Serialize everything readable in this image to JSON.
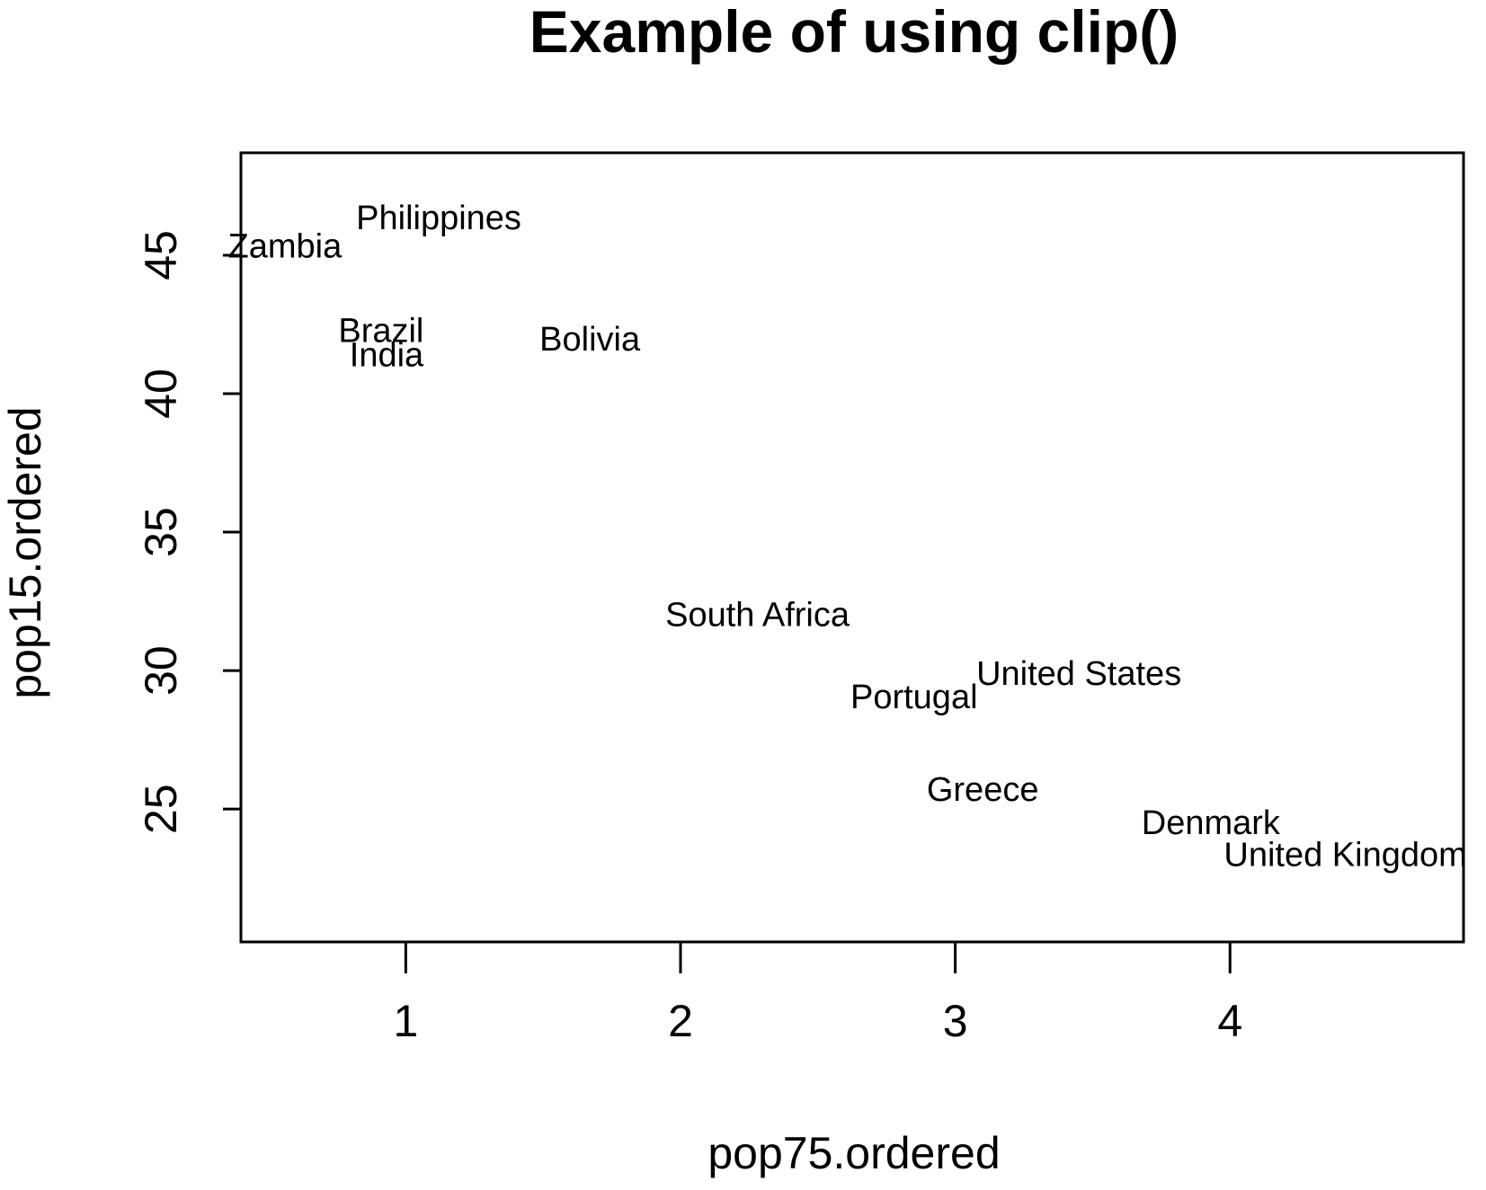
{
  "chart_data": {
    "type": "scatter",
    "title": "Example of using clip()",
    "xlabel": "pop75.ordered",
    "ylabel": "pop15.ordered",
    "xlim": [
      0.4,
      4.85
    ],
    "ylim": [
      20.2,
      48.7
    ],
    "xticks": [
      1,
      2,
      3,
      4
    ],
    "yticks": [
      25,
      30,
      35,
      40,
      45
    ],
    "xtick_labels": [
      "1",
      "2",
      "3",
      "4"
    ],
    "ytick_labels": [
      "25",
      "30",
      "35",
      "40",
      "45"
    ],
    "points": [
      {
        "label": "Zambia",
        "x": 0.56,
        "y": 45.25
      },
      {
        "label": "Philippines",
        "x": 1.12,
        "y": 46.26
      },
      {
        "label": "Brazil",
        "x": 0.91,
        "y": 42.19
      },
      {
        "label": "India",
        "x": 0.93,
        "y": 41.31
      },
      {
        "label": "Bolivia",
        "x": 1.67,
        "y": 41.89
      },
      {
        "label": "South Africa",
        "x": 2.28,
        "y": 31.94
      },
      {
        "label": "Portugal",
        "x": 2.85,
        "y": 28.96
      },
      {
        "label": "United States",
        "x": 3.45,
        "y": 29.81
      },
      {
        "label": "Greece",
        "x": 3.1,
        "y": 25.62
      },
      {
        "label": "Denmark",
        "x": 3.93,
        "y": 24.42
      },
      {
        "label": "United Kingdom",
        "x": 4.42,
        "y": 23.27
      }
    ]
  }
}
